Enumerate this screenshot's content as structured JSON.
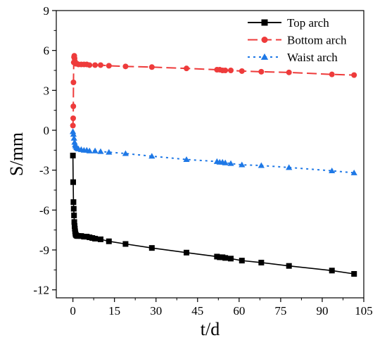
{
  "chart_data": {
    "type": "line",
    "title": "",
    "xlabel": "t/d",
    "ylabel": "S/mm",
    "xlim": [
      -6,
      105
    ],
    "ylim": [
      -12.6,
      9
    ],
    "xticks": [
      0,
      15,
      30,
      45,
      60,
      75,
      90,
      105
    ],
    "yticks": [
      9,
      6,
      3,
      0,
      -3,
      -6,
      -9,
      -12
    ],
    "xtick_labels": [
      "0",
      "15",
      "30",
      "45",
      "60",
      "75",
      "90",
      "105"
    ],
    "ytick_labels": [
      "9",
      "6",
      "3",
      "0",
      "-3",
      "-6",
      "-9",
      "-12"
    ],
    "grid": false,
    "legend_position": "top-right",
    "series": [
      {
        "name": "Top arch",
        "color": "#000000",
        "marker": "square",
        "dash": "solid",
        "x": [
          0,
          0.1,
          0.2,
          0.3,
          0.4,
          0.5,
          0.6,
          0.7,
          0.8,
          0.9,
          1.0,
          1.2,
          1.5,
          2,
          3,
          4,
          5,
          6,
          7,
          8,
          10,
          13,
          19,
          28.5,
          41,
          52,
          53,
          54,
          55,
          57,
          61,
          68,
          78,
          93.5,
          101.5
        ],
        "y": [
          -1.9,
          -3.9,
          -5.4,
          -5.9,
          -6.4,
          -6.9,
          -7.2,
          -7.4,
          -7.6,
          -7.75,
          -7.85,
          -7.9,
          -7.95,
          -7.95,
          -7.95,
          -8.0,
          -8.0,
          -8.05,
          -8.1,
          -8.15,
          -8.2,
          -8.35,
          -8.55,
          -8.85,
          -9.2,
          -9.5,
          -9.55,
          -9.55,
          -9.6,
          -9.65,
          -9.8,
          -9.95,
          -10.2,
          -10.55,
          -10.8
        ]
      },
      {
        "name": "Bottom arch",
        "color": "#ee3b3b",
        "marker": "circle",
        "dash": "dashed",
        "x": [
          0,
          0.1,
          0.15,
          0.2,
          0.3,
          0.4,
          0.5,
          0.6,
          0.7,
          0.8,
          0.9,
          1.0,
          1.2,
          1.5,
          2,
          3,
          4,
          5,
          6,
          8,
          10,
          13,
          19,
          28.5,
          41,
          52,
          53,
          54,
          55,
          57,
          61,
          68,
          78,
          93.5,
          101.5
        ],
        "y": [
          0.35,
          0.9,
          1.8,
          3.6,
          5.1,
          5.5,
          5.6,
          5.4,
          5.2,
          5.1,
          5.05,
          5.0,
          5.0,
          5.0,
          4.95,
          4.95,
          4.95,
          4.95,
          4.9,
          4.9,
          4.9,
          4.85,
          4.8,
          4.75,
          4.65,
          4.55,
          4.55,
          4.5,
          4.5,
          4.5,
          4.45,
          4.4,
          4.35,
          4.2,
          4.15
        ]
      },
      {
        "name": "Waist arch",
        "color": "#1e78e6",
        "marker": "triangle",
        "dash": "dotted",
        "x": [
          0,
          0.2,
          0.4,
          0.6,
          0.8,
          1.0,
          1.3,
          1.6,
          2,
          3,
          4,
          5,
          6,
          8,
          10,
          13,
          19,
          28.5,
          41,
          52,
          53,
          54,
          55,
          57,
          61,
          68,
          78,
          93.5,
          101.5
        ],
        "y": [
          -0.1,
          -0.3,
          -0.6,
          -0.9,
          -1.1,
          -1.2,
          -1.3,
          -1.35,
          -1.4,
          -1.45,
          -1.5,
          -1.5,
          -1.55,
          -1.55,
          -1.6,
          -1.65,
          -1.75,
          -1.95,
          -2.2,
          -2.35,
          -2.4,
          -2.4,
          -2.45,
          -2.5,
          -2.6,
          -2.65,
          -2.8,
          -3.05,
          -3.2
        ]
      }
    ]
  }
}
